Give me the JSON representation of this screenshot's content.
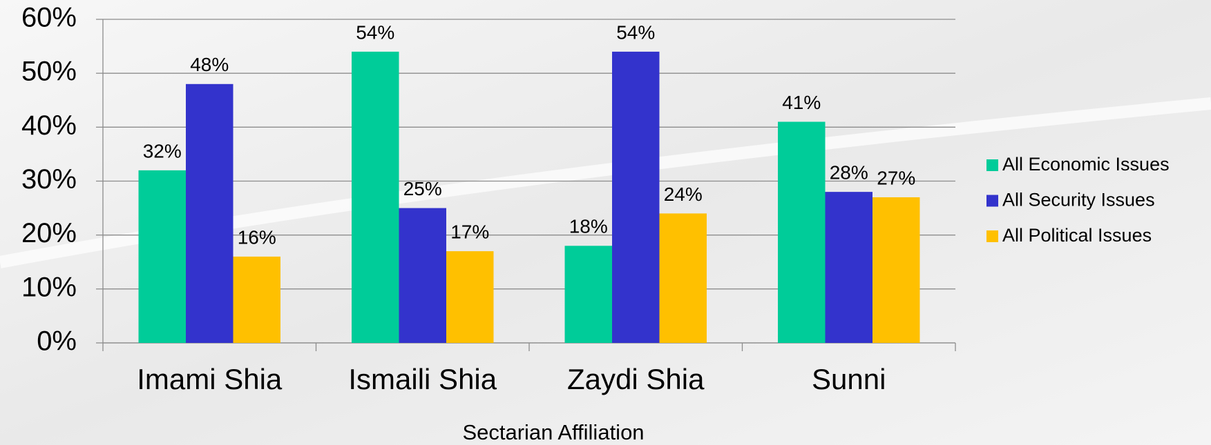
{
  "chart_data": {
    "type": "bar",
    "x_label": "Sectarian Affiliation",
    "categories": [
      "Imami Shia",
      "Ismaili Shia",
      "Zaydi Shia",
      "Sunni"
    ],
    "series": [
      {
        "name": "All Economic Issues",
        "color": "#00cc99",
        "values": [
          32,
          54,
          18,
          41
        ],
        "value_labels": [
          "32%",
          "54%",
          "18%",
          "41%"
        ]
      },
      {
        "name": "All Security Issues",
        "color": "#3333cc",
        "values": [
          48,
          25,
          54,
          28
        ],
        "value_labels": [
          "48%",
          "25%",
          "54%",
          "28%"
        ]
      },
      {
        "name": "All Political Issues",
        "color": "#ffc000",
        "values": [
          16,
          17,
          24,
          27
        ],
        "value_labels": [
          "16%",
          "17%",
          "24%",
          "27%"
        ]
      }
    ],
    "ylim": [
      0,
      60
    ],
    "yticks": [
      {
        "value": 0,
        "label": "0%"
      },
      {
        "value": 10,
        "label": "10%"
      },
      {
        "value": 20,
        "label": "20%"
      },
      {
        "value": 30,
        "label": "30%"
      },
      {
        "value": 40,
        "label": "40%"
      },
      {
        "value": 50,
        "label": "50%"
      },
      {
        "value": 60,
        "label": "60%"
      }
    ],
    "grid": true,
    "legend": "right"
  }
}
